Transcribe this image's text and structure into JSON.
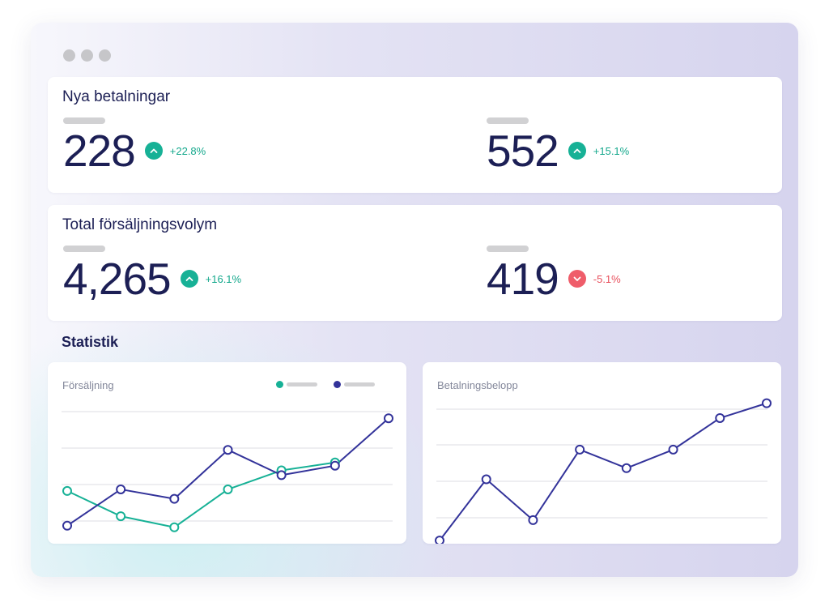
{
  "window": {
    "controls": [
      "dot",
      "dot",
      "dot"
    ]
  },
  "cards": [
    {
      "title": "Nya betalningar",
      "stats": [
        {
          "value": "228",
          "delta": "+22.8%",
          "direction": "up",
          "icon": "chevron-up-icon"
        },
        {
          "value": "552",
          "delta": "+15.1%",
          "direction": "up",
          "icon": "chevron-up-icon"
        }
      ]
    },
    {
      "title": "Total försäljningsvolym",
      "stats": [
        {
          "value": "4,265",
          "delta": "+16.1%",
          "direction": "up",
          "icon": "chevron-up-icon"
        },
        {
          "value": "419",
          "delta": "-5.1%",
          "direction": "down",
          "icon": "chevron-down-icon"
        }
      ]
    }
  ],
  "statistics": {
    "title": "Statistik"
  },
  "colors": {
    "navy": "#1c1f55",
    "series_teal": "#17b196",
    "series_indigo": "#33339a",
    "positive": "#17b196",
    "negative": "#ef5d6a"
  },
  "chart_data": [
    {
      "type": "line",
      "title": "Försäljning",
      "x": [
        1,
        2,
        3,
        4,
        5,
        6,
        7
      ],
      "ylim": [
        0,
        100
      ],
      "grid": true,
      "legend": "top-right",
      "series": [
        {
          "values": [
            38,
            22,
            15,
            39,
            51,
            56
          ],
          "color": "#17b196",
          "x": [
            1,
            2,
            3,
            4,
            5,
            6
          ]
        },
        {
          "values": [
            16,
            39,
            33,
            64,
            48,
            54,
            84
          ],
          "color": "#33339a",
          "x": [
            1,
            2,
            3,
            4,
            5,
            6,
            7
          ]
        }
      ]
    },
    {
      "type": "line",
      "title": "Betalningsbelopp",
      "x": [
        1,
        2,
        3,
        4,
        5,
        6,
        7,
        8
      ],
      "ylim": [
        0,
        100
      ],
      "grid": true,
      "series": [
        {
          "values": [
            10,
            43,
            21,
            59,
            49,
            59,
            76,
            84
          ],
          "color": "#33339a"
        }
      ]
    }
  ]
}
